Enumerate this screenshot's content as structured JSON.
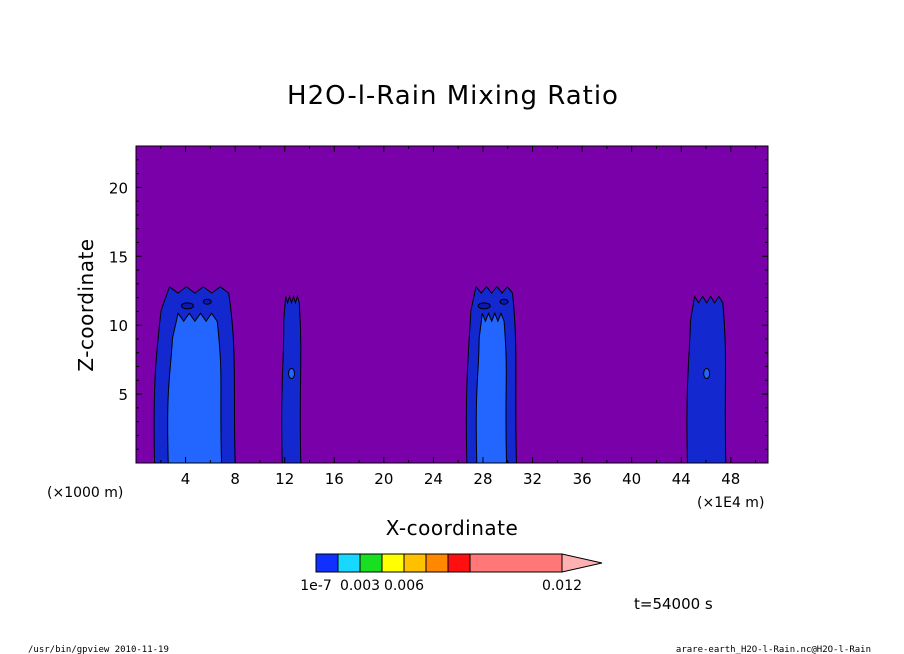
{
  "chart_data": {
    "type": "heatmap",
    "title": "H2O-l-Rain Mixing Ratio",
    "xlabel": "X-coordinate",
    "ylabel": "Z-coordinate",
    "x_unit_left": "(×1000 m)",
    "x_unit_right": "(×1E4 m)",
    "xlim": [
      0,
      51
    ],
    "ylim": [
      0,
      23
    ],
    "x_ticks": [
      4,
      8,
      12,
      16,
      20,
      24,
      28,
      32,
      36,
      40,
      44,
      48
    ],
    "y_ticks": [
      5,
      10,
      15,
      20
    ],
    "background_color": "#7a00aa",
    "time_label": "t=54000 s",
    "colorbar": {
      "colors": [
        "#1030ff",
        "#18d8ff",
        "#18e020",
        "#ffff00",
        "#ffc000",
        "#ff8800",
        "#ff1010",
        "#ff7777"
      ],
      "extend_color": "#ffb0b0",
      "labels": [
        {
          "text": "1e-7",
          "pos": 0
        },
        {
          "text": "0.003",
          "pos": 2
        },
        {
          "text": "0.006",
          "pos": 4
        },
        {
          "text": "0.012",
          "pos": 8
        }
      ]
    },
    "rain_columns": [
      {
        "x_min": 1.5,
        "x_max": 8.0,
        "z_top": 12.5,
        "level": "1e-7",
        "inner_x_min": 2.6,
        "inner_x_max": 6.9,
        "inner_z_top": 10.5
      },
      {
        "x_min": 11.8,
        "x_max": 13.3,
        "z_top": 11.8,
        "level": "1e-7"
      },
      {
        "x_min": 26.7,
        "x_max": 30.7,
        "z_top": 12.5,
        "level": "1e-7",
        "inner_x_min": 27.5,
        "inner_x_max": 29.9,
        "inner_z_top": 10.5
      },
      {
        "x_min": 44.5,
        "x_max": 47.6,
        "z_top": 11.8,
        "level": "1e-7"
      }
    ]
  },
  "footer": {
    "left": "/usr/bin/gpview  2010-11-19",
    "right": "arare-earth_H2O-l-Rain.nc@H2O-l-Rain"
  }
}
